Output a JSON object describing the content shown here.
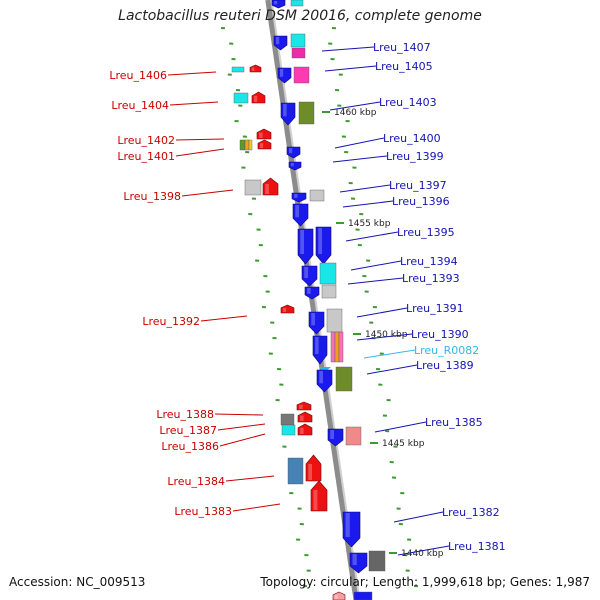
{
  "title": "Lactobacillus reuteri DSM 20016, complete genome",
  "accession": "Accession: NC_009513",
  "topology": "Topology: circular; Length: 1,999,618 bp; Genes: 1,987",
  "colors": {
    "backbone": "#8c8c8c",
    "tick": "#3c9a30",
    "reverse_label": "#cc0000",
    "forward_label": "#1414b4",
    "rna_label": "#33b8e6",
    "forward_gene": "#1a1aee",
    "reverse_gene": "#ee1111"
  },
  "bp_markers": [
    "1460 kbp",
    "1455 kbp",
    "1450 kbp",
    "1445 kbp",
    "1440 kbp"
  ],
  "genes": [
    {
      "label": "Lreu_1407",
      "strand": "forward"
    },
    {
      "label": "Lreu_1406",
      "strand": "reverse"
    },
    {
      "label": "Lreu_1405",
      "strand": "forward"
    },
    {
      "label": "Lreu_1404",
      "strand": "reverse"
    },
    {
      "label": "Lreu_1403",
      "strand": "forward"
    },
    {
      "label": "Lreu_1402",
      "strand": "reverse"
    },
    {
      "label": "Lreu_1401",
      "strand": "reverse"
    },
    {
      "label": "Lreu_1400",
      "strand": "forward"
    },
    {
      "label": "Lreu_1399",
      "strand": "forward"
    },
    {
      "label": "Lreu_1398",
      "strand": "reverse"
    },
    {
      "label": "Lreu_1397",
      "strand": "forward"
    },
    {
      "label": "Lreu_1396",
      "strand": "forward"
    },
    {
      "label": "Lreu_1395",
      "strand": "forward"
    },
    {
      "label": "Lreu_1394",
      "strand": "forward"
    },
    {
      "label": "Lreu_1393",
      "strand": "forward"
    },
    {
      "label": "Lreu_1392",
      "strand": "reverse"
    },
    {
      "label": "Lreu_1391",
      "strand": "forward"
    },
    {
      "label": "Lreu_1390",
      "strand": "forward"
    },
    {
      "label": "Lreu_R0082",
      "strand": "rna"
    },
    {
      "label": "Lreu_1389",
      "strand": "forward"
    },
    {
      "label": "Lreu_1388",
      "strand": "reverse"
    },
    {
      "label": "Lreu_1387",
      "strand": "reverse"
    },
    {
      "label": "Lreu_1386",
      "strand": "reverse"
    },
    {
      "label": "Lreu_1385",
      "strand": "forward"
    },
    {
      "label": "Lreu_1384",
      "strand": "reverse"
    },
    {
      "label": "Lreu_1383",
      "strand": "reverse"
    },
    {
      "label": "Lreu_1382",
      "strand": "forward"
    },
    {
      "label": "Lreu_1381",
      "strand": "forward"
    }
  ]
}
